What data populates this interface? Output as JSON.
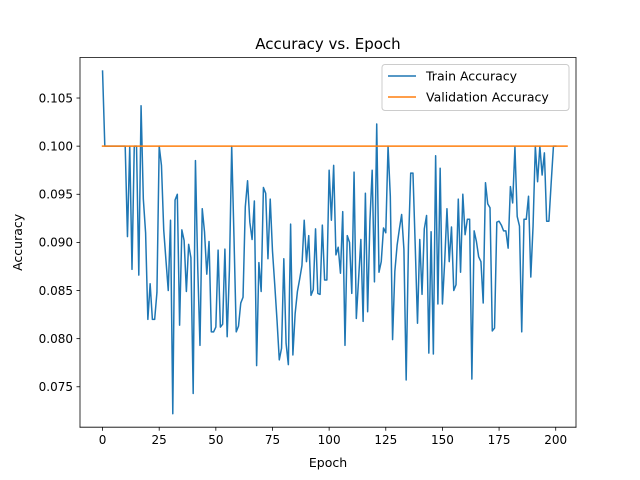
{
  "chart_data": {
    "type": "line",
    "title": "Accuracy vs. Epoch",
    "xlabel": "Epoch",
    "ylabel": "Accuracy",
    "xlim": [
      -9.95,
      208.95
    ],
    "ylim": [
      0.0708,
      0.1092
    ],
    "xticks": [
      0,
      25,
      50,
      75,
      100,
      125,
      150,
      175,
      200
    ],
    "yticks": [
      0.075,
      0.08,
      0.085,
      0.09,
      0.095,
      0.1,
      0.105
    ],
    "ytick_format": 3,
    "grid": false,
    "legend_position": "upper right",
    "series": [
      {
        "name": "Train Accuracy",
        "color": "#1f77b4",
        "values": [
          0.1078,
          0.1,
          0.1,
          0.1,
          0.1,
          0.1,
          0.1,
          0.1,
          0.1,
          0.1,
          0.1,
          0.0906,
          0.1,
          0.0872,
          0.1,
          0.1,
          0.0866,
          0.1042,
          0.0945,
          0.091,
          0.082,
          0.0857,
          0.082,
          0.082,
          0.0848,
          0.1,
          0.098,
          0.0913,
          0.0881,
          0.085,
          0.0923,
          0.0722,
          0.0944,
          0.095,
          0.0814,
          0.0913,
          0.0902,
          0.0849,
          0.0898,
          0.0884,
          0.0743,
          0.0985,
          0.0875,
          0.0793,
          0.0935,
          0.0911,
          0.0867,
          0.0901,
          0.0807,
          0.0807,
          0.0812,
          0.0892,
          0.0812,
          0.0815,
          0.0893,
          0.0802,
          0.0872,
          0.1,
          0.0906,
          0.0807,
          0.0813,
          0.0837,
          0.0843,
          0.0937,
          0.0964,
          0.0921,
          0.0903,
          0.0943,
          0.0772,
          0.0879,
          0.0849,
          0.0957,
          0.0951,
          0.0883,
          0.0945,
          0.0891,
          0.0856,
          0.0819,
          0.0778,
          0.079,
          0.0883,
          0.0795,
          0.0773,
          0.0919,
          0.0783,
          0.0826,
          0.0849,
          0.0862,
          0.0876,
          0.0923,
          0.088,
          0.0907,
          0.0845,
          0.0851,
          0.0914,
          0.0847,
          0.0846,
          0.0918,
          0.0861,
          0.0861,
          0.0975,
          0.0923,
          0.098,
          0.0887,
          0.0895,
          0.0868,
          0.0932,
          0.0793,
          0.0907,
          0.09,
          0.0847,
          0.0973,
          0.0821,
          0.0862,
          0.0903,
          0.0818,
          0.0951,
          0.0828,
          0.0922,
          0.0975,
          0.0859,
          0.1023,
          0.0869,
          0.088,
          0.0915,
          0.091,
          0.1,
          0.0948,
          0.0799,
          0.087,
          0.0897,
          0.0914,
          0.0929,
          0.0893,
          0.0757,
          0.0897,
          0.0972,
          0.0972,
          0.0896,
          0.0816,
          0.0903,
          0.0846,
          0.0914,
          0.0928,
          0.0785,
          0.0911,
          0.0784,
          0.099,
          0.0836,
          0.0977,
          0.0836,
          0.088,
          0.0935,
          0.088,
          0.0916,
          0.085,
          0.0856,
          0.0945,
          0.0869,
          0.095,
          0.0908,
          0.0924,
          0.0924,
          0.0758,
          0.0912,
          0.0901,
          0.0885,
          0.088,
          0.0837,
          0.0962,
          0.094,
          0.0936,
          0.0808,
          0.0811,
          0.0921,
          0.0922,
          0.0918,
          0.0912,
          0.0912,
          0.0894,
          0.0958,
          0.0941,
          0.0999,
          0.0927,
          0.0917,
          0.0807,
          0.0924,
          0.0924,
          0.0948,
          0.0864,
          0.0917,
          0.1,
          0.0963,
          0.1,
          0.097,
          0.0993,
          0.0922,
          0.0922,
          0.0962,
          0.1,
          0.1
        ]
      },
      {
        "name": "Validation Accuracy",
        "color": "#ff7f0e",
        "values": [
          0.1,
          0.1,
          0.1,
          0.1,
          0.1,
          0.1,
          0.1,
          0.1,
          0.1,
          0.1,
          0.1,
          0.1,
          0.1,
          0.1,
          0.1,
          0.1,
          0.1,
          0.1,
          0.1,
          0.1,
          0.1,
          0.1,
          0.1,
          0.1,
          0.1,
          0.1,
          0.1,
          0.1,
          0.1,
          0.1,
          0.1,
          0.1,
          0.1,
          0.1,
          0.1,
          0.1,
          0.1,
          0.1,
          0.1,
          0.1,
          0.1,
          0.1,
          0.1,
          0.1,
          0.1,
          0.1,
          0.1,
          0.1,
          0.1,
          0.1,
          0.1,
          0.1,
          0.1,
          0.1,
          0.1,
          0.1,
          0.1,
          0.1,
          0.1,
          0.1,
          0.1,
          0.1,
          0.1,
          0.1,
          0.1,
          0.1,
          0.1,
          0.1,
          0.1,
          0.1,
          0.1,
          0.1,
          0.1,
          0.1,
          0.1,
          0.1,
          0.1,
          0.1,
          0.1,
          0.1,
          0.1,
          0.1,
          0.1,
          0.1,
          0.1,
          0.1,
          0.1,
          0.1,
          0.1,
          0.1,
          0.1,
          0.1,
          0.1,
          0.1,
          0.1,
          0.1,
          0.1,
          0.1,
          0.1,
          0.1,
          0.1,
          0.1,
          0.1,
          0.1,
          0.1,
          0.1,
          0.1,
          0.1,
          0.1,
          0.1,
          0.1,
          0.1,
          0.1,
          0.1,
          0.1,
          0.1,
          0.1,
          0.1,
          0.1,
          0.1,
          0.1,
          0.1,
          0.1,
          0.1,
          0.1,
          0.1,
          0.1,
          0.1,
          0.1,
          0.1,
          0.1,
          0.1,
          0.1,
          0.1,
          0.1,
          0.1,
          0.1,
          0.1,
          0.1,
          0.1,
          0.1,
          0.1,
          0.1,
          0.1,
          0.1,
          0.1,
          0.1,
          0.1,
          0.1,
          0.1,
          0.1,
          0.1,
          0.1,
          0.1,
          0.1,
          0.1,
          0.1,
          0.1,
          0.1,
          0.1,
          0.1,
          0.1,
          0.1,
          0.1,
          0.1,
          0.1,
          0.1,
          0.1,
          0.1,
          0.1,
          0.1,
          0.1,
          0.1,
          0.1,
          0.1,
          0.1,
          0.1,
          0.1,
          0.1,
          0.1,
          0.1,
          0.1,
          0.1,
          0.1,
          0.1,
          0.1,
          0.1,
          0.1,
          0.1,
          0.1,
          0.1,
          0.1,
          0.1,
          0.1,
          0.1,
          0.1,
          0.1,
          0.1,
          0.1,
          0.1,
          0.1,
          0.1,
          0.1,
          0.1,
          0.1,
          0.1
        ]
      }
    ]
  }
}
